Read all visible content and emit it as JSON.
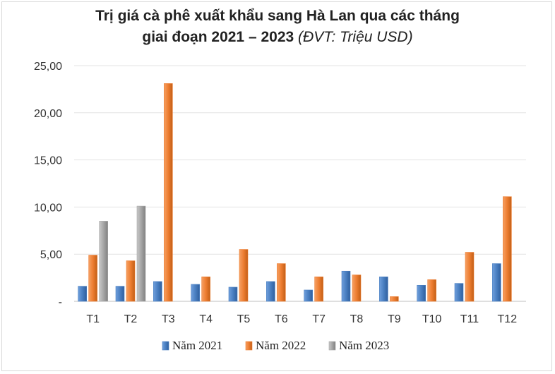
{
  "chart_data": {
    "type": "bar",
    "title_line1": "Trị giá cà phê xuất khẩu sang Hà Lan qua các tháng",
    "title_line2": "giai đoạn 2021 – 2023",
    "title_unit": "(ĐVT: Triệu USD)",
    "categories": [
      "T1",
      "T2",
      "T3",
      "T4",
      "T5",
      "T6",
      "T7",
      "T8",
      "T9",
      "T10",
      "T11",
      "T12"
    ],
    "ylim": [
      0,
      25
    ],
    "yticks": [
      "-",
      "5,00",
      "10,00",
      "15,00",
      "20,00",
      "25,00"
    ],
    "grid": true,
    "legend_position": "bottom",
    "series": [
      {
        "name": "Năm 2021",
        "color": "#4a7fc1",
        "values": [
          1.6,
          1.6,
          2.1,
          1.8,
          1.5,
          2.1,
          1.2,
          3.2,
          2.6,
          1.7,
          1.9,
          4.0
        ]
      },
      {
        "name": "Năm 2022",
        "color": "#ed7d31",
        "values": [
          4.9,
          4.3,
          23.1,
          2.6,
          5.5,
          4.0,
          2.6,
          2.8,
          0.5,
          2.3,
          5.2,
          11.1
        ]
      },
      {
        "name": "Năm 2023",
        "color": "#a5a5a5",
        "values": [
          8.5,
          10.1,
          null,
          null,
          null,
          null,
          null,
          null,
          null,
          null,
          null,
          null
        ]
      }
    ]
  }
}
